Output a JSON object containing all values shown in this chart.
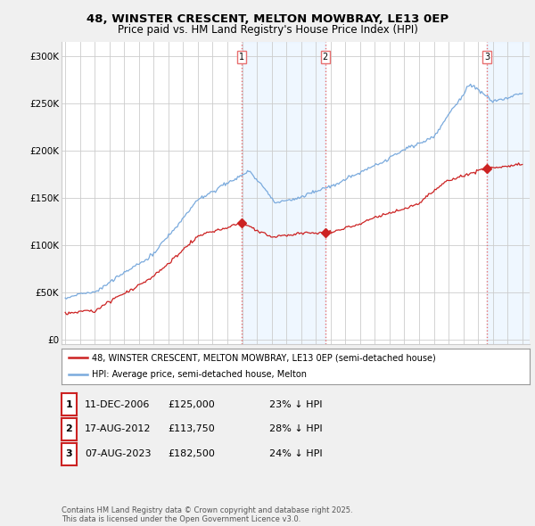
{
  "title_line1": "48, WINSTER CRESCENT, MELTON MOWBRAY, LE13 0EP",
  "title_line2": "Price paid vs. HM Land Registry's House Price Index (HPI)",
  "ylabel_ticks": [
    "£0",
    "£50K",
    "£100K",
    "£150K",
    "£200K",
    "£250K",
    "£300K"
  ],
  "ytick_values": [
    0,
    50000,
    100000,
    150000,
    200000,
    250000,
    300000
  ],
  "ylim": [
    -5000,
    315000
  ],
  "xlim_start": 1994.75,
  "xlim_end": 2026.5,
  "transactions": [
    {
      "num": 1,
      "date": "11-DEC-2006",
      "price": 125000,
      "pct": "23%",
      "x_year": 2006.95
    },
    {
      "num": 2,
      "date": "17-AUG-2012",
      "price": 113750,
      "pct": "28%",
      "x_year": 2012.63
    },
    {
      "num": 3,
      "date": "07-AUG-2023",
      "price": 182500,
      "pct": "24%",
      "x_year": 2023.61
    }
  ],
  "vline_color": "#e87070",
  "vline_style": ":",
  "shade_color": "#ddeeff",
  "shade_alpha": 0.45,
  "hpi_color": "#7aaadd",
  "paid_color": "#cc2222",
  "legend_label_paid": "48, WINSTER CRESCENT, MELTON MOWBRAY, LE13 0EP (semi-detached house)",
  "legend_label_hpi": "HPI: Average price, semi-detached house, Melton",
  "table_rows": [
    {
      "num": 1,
      "date": "11-DEC-2006",
      "price": "£125,000",
      "pct": "23% ↓ HPI"
    },
    {
      "num": 2,
      "date": "17-AUG-2012",
      "price": "£113,750",
      "pct": "28% ↓ HPI"
    },
    {
      "num": 3,
      "date": "07-AUG-2023",
      "price": "£182,500",
      "pct": "24% ↓ HPI"
    }
  ],
  "footnote": "Contains HM Land Registry data © Crown copyright and database right 2025.\nThis data is licensed under the Open Government Licence v3.0.",
  "background_color": "#f0f0f0",
  "plot_bg_color": "#ffffff",
  "grid_color": "#cccccc"
}
